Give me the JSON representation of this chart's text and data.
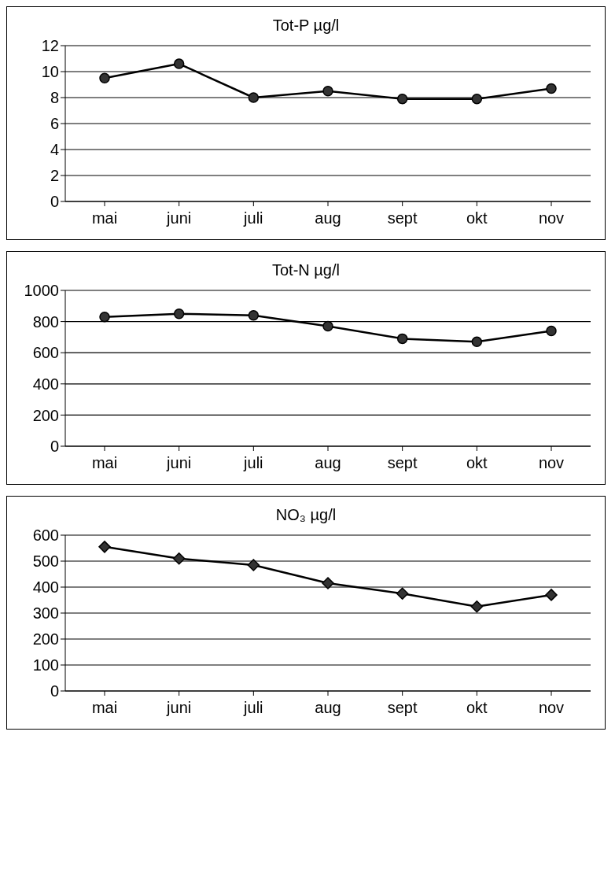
{
  "chart_data": [
    {
      "type": "line",
      "title": "Tot-P µg/l",
      "categories": [
        "mai",
        "juni",
        "juli",
        "aug",
        "sept",
        "okt",
        "nov"
      ],
      "series": [
        {
          "color": "#000000",
          "values": [
            9.5,
            10.6,
            8.0,
            8.5,
            7.9,
            7.9,
            8.7
          ]
        }
      ],
      "ylim": [
        0,
        12
      ],
      "yticks": [
        0,
        2,
        4,
        6,
        8,
        10,
        12
      ],
      "grid": "y",
      "marker": "circle",
      "legend": false
    },
    {
      "type": "line",
      "title": "Tot-N µg/l",
      "categories": [
        "mai",
        "juni",
        "juli",
        "aug",
        "sept",
        "okt",
        "nov"
      ],
      "series": [
        {
          "color": "#000000",
          "values": [
            830,
            850,
            840,
            770,
            690,
            670,
            740
          ]
        }
      ],
      "ylim": [
        0,
        1000
      ],
      "yticks": [
        0,
        200,
        400,
        600,
        800,
        1000
      ],
      "grid": "y",
      "marker": "circle",
      "legend": false
    },
    {
      "type": "line",
      "title": "NO₃ µg/l",
      "categories": [
        "mai",
        "juni",
        "juli",
        "aug",
        "sept",
        "okt",
        "nov"
      ],
      "series": [
        {
          "color": "#000000",
          "values": [
            555,
            510,
            485,
            415,
            375,
            325,
            370
          ]
        }
      ],
      "ylim": [
        0,
        600
      ],
      "yticks": [
        0,
        100,
        200,
        300,
        400,
        500,
        600
      ],
      "grid": "y",
      "marker": "diamond",
      "legend": false
    }
  ]
}
